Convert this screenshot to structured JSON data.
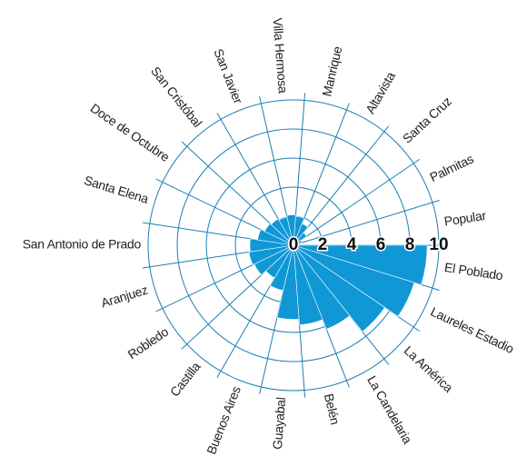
{
  "chart_data": {
    "type": "polar_bar",
    "categories": [
      "El Poblado",
      "Laureles Estadio",
      "La América",
      "La Candelaria",
      "Belén",
      "Guayabal",
      "Buenos Aires",
      "Castilla",
      "Robledo",
      "Aranjuez",
      "San Antonio de Prado",
      "Santa Elena",
      "Doce de Octubre",
      "San Cristóbal",
      "San Javier",
      "Villa Hermosa",
      "Manrique",
      "Altavista",
      "Santa Cruz",
      "Palmitas",
      "Popular"
    ],
    "values": [
      9.2,
      8.7,
      7.6,
      6.2,
      5.5,
      5.1,
      3.2,
      2.6,
      3.0,
      3.1,
      3.0,
      2.5,
      2.2,
      2.1,
      2.0,
      2.1,
      2.0,
      1.6,
      1.1,
      0.6,
      0.2
    ],
    "color": "#1097d6",
    "rlim": [
      0,
      10
    ],
    "rticks": [
      0,
      2,
      4,
      6,
      8,
      10
    ],
    "grid": true
  }
}
